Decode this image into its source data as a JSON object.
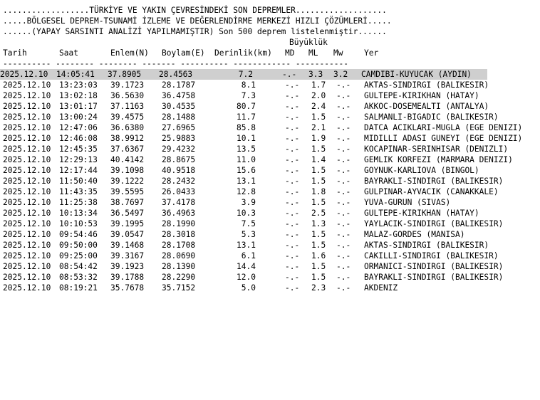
{
  "header": {
    "line1": "..................TÜRKİYE VE YAKIN ÇEVRESİNDEKİ SON DEPREMLER...................",
    "line2": ".....BÖLGESEL DEPREM-TSUNAMİ İZLEME VE DEĞERLENDİRME MERKEZİ HIZLI ÇÖZÜMLERİ.....",
    "line3": "......(YAPAY SARSINTI ANALİZİ YAPILMAMIŞTIR) Son 500 deprem listelenmiştir......"
  },
  "columns": {
    "group_label": "Büyüklük",
    "date": "Tarih",
    "time": "Saat",
    "lat": "Enlem(N)",
    "lon": "Boylam(E)",
    "depth": "Derinlik(km)",
    "md": "MD",
    "ml": "ML",
    "mw": "Mw",
    "place": "Yer",
    "separator": "---------- -------- -------- ------- ---------- ------------ -----------"
  },
  "rows": [
    {
      "date": "2025.12.10",
      "time": "14:05:41",
      "lat": "37.8905",
      "lon": "28.4563",
      "depth": "7.2",
      "md": "-.-",
      "ml": "3.3",
      "mw": "3.2",
      "place": "CAMDIBI-KUYUCAK (AYDIN)"
    },
    {
      "date": "2025.12.10",
      "time": "13:23:03",
      "lat": "39.1723",
      "lon": "28.1787",
      "depth": "8.1",
      "md": "-.-",
      "ml": "1.7",
      "mw": "-.-",
      "place": "AKTAS-SINDIRGI (BALIKESIR)"
    },
    {
      "date": "2025.12.10",
      "time": "13:02:18",
      "lat": "36.5630",
      "lon": "36.4758",
      "depth": "7.3",
      "md": "-.-",
      "ml": "2.0",
      "mw": "-.-",
      "place": "GULTEPE-KIRIKHAN (HATAY)"
    },
    {
      "date": "2025.12.10",
      "time": "13:01:17",
      "lat": "37.1163",
      "lon": "30.4535",
      "depth": "80.7",
      "md": "-.-",
      "ml": "2.4",
      "mw": "-.-",
      "place": "AKKOC-DOSEMEALTI (ANTALYA)"
    },
    {
      "date": "2025.12.10",
      "time": "13:00:24",
      "lat": "39.4575",
      "lon": "28.1488",
      "depth": "11.7",
      "md": "-.-",
      "ml": "1.5",
      "mw": "-.-",
      "place": "SALMANLI-BIGADIC (BALIKESIR)"
    },
    {
      "date": "2025.12.10",
      "time": "12:47:06",
      "lat": "36.6380",
      "lon": "27.6965",
      "depth": "85.8",
      "md": "-.-",
      "ml": "2.1",
      "mw": "-.-",
      "place": "DATCA ACIKLARI-MUGLA (EGE DENIZI)"
    },
    {
      "date": "2025.12.10",
      "time": "12:46:08",
      "lat": "38.9912",
      "lon": "25.9883",
      "depth": "10.1",
      "md": "-.-",
      "ml": "1.9",
      "mw": "-.-",
      "place": "MIDILLI ADASI GUNEYI (EGE DENIZI)"
    },
    {
      "date": "2025.12.10",
      "time": "12:45:35",
      "lat": "37.6367",
      "lon": "29.4232",
      "depth": "13.5",
      "md": "-.-",
      "ml": "1.5",
      "mw": "-.-",
      "place": "KOCAPINAR-SERINHISAR (DENIZLI)"
    },
    {
      "date": "2025.12.10",
      "time": "12:29:13",
      "lat": "40.4142",
      "lon": "28.8675",
      "depth": "11.0",
      "md": "-.-",
      "ml": "1.4",
      "mw": "-.-",
      "place": "GEMLIK KORFEZI (MARMARA DENIZI)"
    },
    {
      "date": "2025.12.10",
      "time": "12:17:44",
      "lat": "39.1098",
      "lon": "40.9518",
      "depth": "15.6",
      "md": "-.-",
      "ml": "1.5",
      "mw": "-.-",
      "place": "GOYNUK-KARLIOVA (BINGOL)"
    },
    {
      "date": "2025.12.10",
      "time": "11:50:40",
      "lat": "39.1222",
      "lon": "28.2432",
      "depth": "13.1",
      "md": "-.-",
      "ml": "1.5",
      "mw": "-.-",
      "place": "BAYRAKLI-SINDIRGI (BALIKESIR)"
    },
    {
      "date": "2025.12.10",
      "time": "11:43:35",
      "lat": "39.5595",
      "lon": "26.0433",
      "depth": "12.8",
      "md": "-.-",
      "ml": "1.8",
      "mw": "-.-",
      "place": "GULPINAR-AYVACIK (CANAKKALE)"
    },
    {
      "date": "2025.12.10",
      "time": "11:25:38",
      "lat": "38.7697",
      "lon": "37.4178",
      "depth": "3.9",
      "md": "-.-",
      "ml": "1.5",
      "mw": "-.-",
      "place": "YUVA-GURUN (SIVAS)"
    },
    {
      "date": "2025.12.10",
      "time": "10:13:34",
      "lat": "36.5497",
      "lon": "36.4963",
      "depth": "10.3",
      "md": "-.-",
      "ml": "2.5",
      "mw": "-.-",
      "place": "GULTEPE-KIRIKHAN (HATAY)"
    },
    {
      "date": "2025.12.10",
      "time": "10:10:53",
      "lat": "39.1995",
      "lon": "28.1990",
      "depth": "7.5",
      "md": "-.-",
      "ml": "1.3",
      "mw": "-.-",
      "place": "YAYLACIK-SINDIRGI (BALIKESIR)"
    },
    {
      "date": "2025.12.10",
      "time": "09:54:46",
      "lat": "39.0547",
      "lon": "28.3018",
      "depth": "5.3",
      "md": "-.-",
      "ml": "1.5",
      "mw": "-.-",
      "place": "MALAZ-GORDES (MANISA)"
    },
    {
      "date": "2025.12.10",
      "time": "09:50:00",
      "lat": "39.1468",
      "lon": "28.1708",
      "depth": "13.1",
      "md": "-.-",
      "ml": "1.5",
      "mw": "-.-",
      "place": "AKTAS-SINDIRGI (BALIKESIR)"
    },
    {
      "date": "2025.12.10",
      "time": "09:25:00",
      "lat": "39.3167",
      "lon": "28.0690",
      "depth": "6.1",
      "md": "-.-",
      "ml": "1.6",
      "mw": "-.-",
      "place": "CAKILLI-SINDIRGI (BALIKESIR)"
    },
    {
      "date": "2025.12.10",
      "time": "08:54:42",
      "lat": "39.1923",
      "lon": "28.1390",
      "depth": "14.4",
      "md": "-.-",
      "ml": "1.5",
      "mw": "-.-",
      "place": "ORMANICI-SINDIRGI (BALIKESIR)"
    },
    {
      "date": "2025.12.10",
      "time": "08:53:32",
      "lat": "39.1788",
      "lon": "28.2290",
      "depth": "12.0",
      "md": "-.-",
      "ml": "1.5",
      "mw": "-.-",
      "place": "BAYRAKLI-SINDIRGI (BALIKESIR)"
    },
    {
      "date": "2025.12.10",
      "time": "08:19:21",
      "lat": "35.7678",
      "lon": "35.7152",
      "depth": "5.0",
      "md": "-.-",
      "ml": "2.3",
      "mw": "-.-",
      "place": "AKDENIZ"
    }
  ]
}
